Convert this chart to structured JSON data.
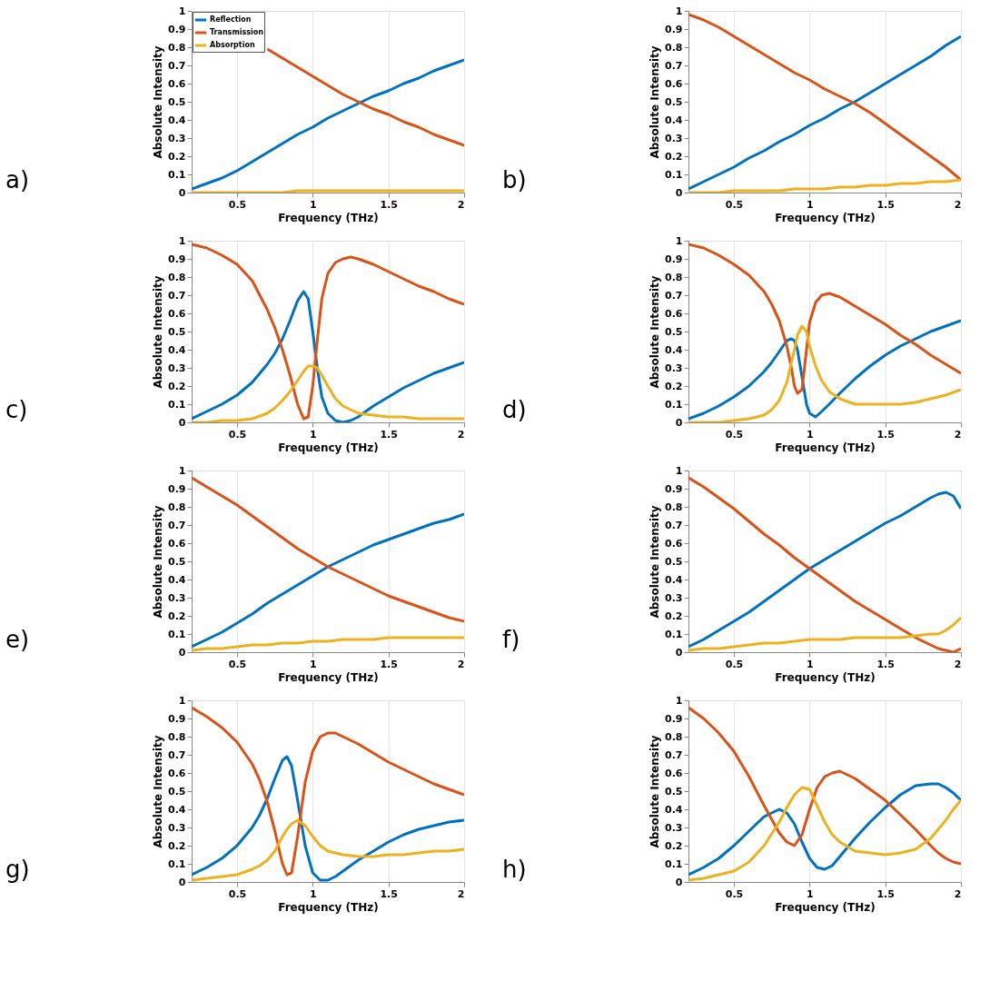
{
  "chart_data": [
    {
      "type": "line",
      "annotations": [
        "a)"
      ],
      "xlabel": "Frequency (THz)",
      "ylabel": "Absolute Intensity",
      "xlim": [
        0.2,
        2
      ],
      "ylim": [
        0,
        1
      ],
      "xticks": [
        0.5,
        1,
        1.5,
        2
      ],
      "yticks": [
        0,
        0.1,
        0.2,
        0.3,
        0.4,
        0.5,
        0.6,
        0.7,
        0.8,
        0.9,
        1
      ],
      "grid": "x",
      "legend": "top left",
      "line_style": "solid",
      "x": [
        0.2,
        0.3,
        0.4,
        0.5,
        0.6,
        0.7,
        0.8,
        0.9,
        1.0,
        1.1,
        1.2,
        1.3,
        1.4,
        1.5,
        1.6,
        1.7,
        1.8,
        1.9,
        2.0
      ],
      "series": [
        {
          "name": "Reflection",
          "color": "#0072bd",
          "values": [
            0.02,
            0.05,
            0.08,
            0.12,
            0.17,
            0.22,
            0.27,
            0.32,
            0.36,
            0.41,
            0.45,
            0.49,
            0.53,
            0.56,
            0.6,
            0.63,
            0.67,
            0.7,
            0.73
          ]
        },
        {
          "name": "Transmission",
          "color": "#d95319",
          "values": [
            null,
            null,
            null,
            null,
            null,
            0.79,
            0.74,
            0.69,
            0.64,
            0.59,
            0.54,
            0.5,
            0.46,
            0.43,
            0.39,
            0.36,
            0.32,
            0.29,
            0.26
          ]
        },
        {
          "name": "Absorption",
          "color": "#edb120",
          "values": [
            0,
            0,
            0,
            0,
            0,
            0,
            0,
            0.01,
            0.01,
            0.01,
            0.01,
            0.01,
            0.01,
            0.01,
            0.01,
            0.01,
            0.01,
            0.01,
            0.01
          ]
        }
      ]
    },
    {
      "type": "line",
      "annotations": [
        "b)"
      ],
      "xlabel": "Frequency (THz)",
      "ylabel": "Absolute Intensity",
      "xlim": [
        0.2,
        2
      ],
      "ylim": [
        0,
        1
      ],
      "xticks": [
        0.5,
        1,
        1.5,
        2
      ],
      "yticks": [
        0,
        0.1,
        0.2,
        0.3,
        0.4,
        0.5,
        0.6,
        0.7,
        0.8,
        0.9,
        1
      ],
      "grid": "x",
      "legend": "top left",
      "line_style": "solid",
      "x": [
        0.2,
        0.3,
        0.4,
        0.5,
        0.6,
        0.7,
        0.8,
        0.9,
        1.0,
        1.1,
        1.2,
        1.3,
        1.4,
        1.5,
        1.6,
        1.7,
        1.8,
        1.9,
        2.0
      ],
      "series": [
        {
          "name": "Reflection",
          "color": "#0072bd",
          "values": [
            0.02,
            0.06,
            0.1,
            0.14,
            0.19,
            0.23,
            0.28,
            0.32,
            0.37,
            0.41,
            0.46,
            0.5,
            0.55,
            0.6,
            0.65,
            0.7,
            0.75,
            0.81,
            0.86
          ]
        },
        {
          "name": "Transmission",
          "color": "#d95319",
          "values": [
            0.98,
            0.95,
            0.91,
            0.86,
            0.81,
            0.76,
            0.71,
            0.66,
            0.62,
            0.57,
            0.53,
            0.49,
            0.44,
            0.38,
            0.32,
            0.26,
            0.2,
            0.14,
            0.07
          ]
        },
        {
          "name": "Absorption",
          "color": "#edb120",
          "values": [
            0,
            0,
            0,
            0.01,
            0.01,
            0.01,
            0.01,
            0.02,
            0.02,
            0.02,
            0.03,
            0.03,
            0.04,
            0.04,
            0.05,
            0.05,
            0.06,
            0.06,
            0.07
          ]
        }
      ]
    },
    {
      "type": "line",
      "annotations": [
        "c)"
      ],
      "xlabel": "Frequency (THz)",
      "ylabel": "Absolute Intensity",
      "xlim": [
        0.2,
        2
      ],
      "ylim": [
        0,
        1
      ],
      "xticks": [
        0.5,
        1,
        1.5,
        2
      ],
      "yticks": [
        0,
        0.1,
        0.2,
        0.3,
        0.4,
        0.5,
        0.6,
        0.7,
        0.8,
        0.9,
        1
      ],
      "grid": "x",
      "legend": "top left",
      "line_style": "solid",
      "x": [
        0.2,
        0.3,
        0.4,
        0.5,
        0.6,
        0.7,
        0.75,
        0.8,
        0.85,
        0.9,
        0.94,
        0.97,
        1.0,
        1.03,
        1.06,
        1.1,
        1.15,
        1.2,
        1.25,
        1.3,
        1.4,
        1.5,
        1.6,
        1.7,
        1.8,
        1.9,
        2.0
      ],
      "series": [
        {
          "name": "Reflection",
          "color": "#0072bd",
          "values": [
            0.02,
            0.06,
            0.1,
            0.15,
            0.22,
            0.32,
            0.38,
            0.46,
            0.56,
            0.67,
            0.72,
            0.68,
            0.5,
            0.3,
            0.14,
            0.05,
            0.01,
            0,
            0.01,
            0.03,
            0.09,
            0.14,
            0.19,
            0.23,
            0.27,
            0.3,
            0.33
          ]
        },
        {
          "name": "Transmission",
          "color": "#d95319",
          "values": [
            0.98,
            0.96,
            0.92,
            0.87,
            0.78,
            0.62,
            0.52,
            0.4,
            0.26,
            0.1,
            0.02,
            0.03,
            0.2,
            0.45,
            0.68,
            0.82,
            0.88,
            0.9,
            0.91,
            0.9,
            0.87,
            0.83,
            0.79,
            0.75,
            0.72,
            0.68,
            0.65
          ]
        },
        {
          "name": "Absorption",
          "color": "#edb120",
          "values": [
            0,
            0,
            0.01,
            0.01,
            0.02,
            0.05,
            0.08,
            0.12,
            0.17,
            0.23,
            0.28,
            0.31,
            0.31,
            0.3,
            0.26,
            0.2,
            0.13,
            0.09,
            0.07,
            0.05,
            0.04,
            0.03,
            0.03,
            0.02,
            0.02,
            0.02,
            0.02
          ]
        }
      ]
    },
    {
      "type": "line",
      "annotations": [
        "d)"
      ],
      "xlabel": "Frequency (THz)",
      "ylabel": "Absolute Intensity",
      "xlim": [
        0.2,
        2
      ],
      "ylim": [
        0,
        1
      ],
      "xticks": [
        0.5,
        1,
        1.5,
        2
      ],
      "yticks": [
        0,
        0.1,
        0.2,
        0.3,
        0.4,
        0.5,
        0.6,
        0.7,
        0.8,
        0.9,
        1
      ],
      "grid": "x",
      "legend": "top left",
      "line_style": "solid",
      "x": [
        0.2,
        0.3,
        0.4,
        0.5,
        0.6,
        0.7,
        0.75,
        0.8,
        0.85,
        0.88,
        0.9,
        0.92,
        0.95,
        0.98,
        1.0,
        1.04,
        1.08,
        1.13,
        1.2,
        1.3,
        1.4,
        1.5,
        1.6,
        1.7,
        1.8,
        1.9,
        2.0
      ],
      "series": [
        {
          "name": "Reflection",
          "color": "#0072bd",
          "values": [
            0.02,
            0.05,
            0.09,
            0.14,
            0.2,
            0.28,
            0.33,
            0.39,
            0.45,
            0.46,
            0.45,
            0.4,
            0.25,
            0.1,
            0.05,
            0.03,
            0.06,
            0.1,
            0.16,
            0.24,
            0.31,
            0.37,
            0.42,
            0.46,
            0.5,
            0.53,
            0.56
          ]
        },
        {
          "name": "Transmission",
          "color": "#d95319",
          "values": [
            0.98,
            0.96,
            0.92,
            0.87,
            0.81,
            0.72,
            0.65,
            0.56,
            0.42,
            0.3,
            0.2,
            0.16,
            0.18,
            0.4,
            0.55,
            0.66,
            0.7,
            0.71,
            0.69,
            0.64,
            0.59,
            0.54,
            0.48,
            0.43,
            0.37,
            0.32,
            0.27
          ]
        },
        {
          "name": "Absorption",
          "color": "#edb120",
          "values": [
            0,
            0,
            0,
            0.01,
            0.02,
            0.04,
            0.07,
            0.12,
            0.22,
            0.33,
            0.4,
            0.48,
            0.53,
            0.5,
            0.42,
            0.31,
            0.23,
            0.17,
            0.13,
            0.1,
            0.1,
            0.1,
            0.1,
            0.11,
            0.13,
            0.15,
            0.18
          ]
        }
      ]
    },
    {
      "type": "line",
      "annotations": [
        "e)"
      ],
      "xlabel": "Frequency (THz)",
      "ylabel": "Absolute Intensity",
      "xlim": [
        0.2,
        2
      ],
      "ylim": [
        0,
        1
      ],
      "xticks": [
        0.5,
        1,
        1.5,
        2
      ],
      "yticks": [
        0,
        0.1,
        0.2,
        0.3,
        0.4,
        0.5,
        0.6,
        0.7,
        0.8,
        0.9,
        1
      ],
      "grid": "x",
      "legend": "top left",
      "line_style": "solid",
      "x": [
        0.2,
        0.3,
        0.4,
        0.5,
        0.6,
        0.7,
        0.8,
        0.9,
        1.0,
        1.1,
        1.2,
        1.3,
        1.4,
        1.5,
        1.6,
        1.7,
        1.8,
        1.9,
        2.0
      ],
      "series": [
        {
          "name": "Reflection",
          "color": "#0072bd",
          "values": [
            0.03,
            0.07,
            0.11,
            0.16,
            0.21,
            0.27,
            0.32,
            0.37,
            0.42,
            0.47,
            0.51,
            0.55,
            0.59,
            0.62,
            0.65,
            0.68,
            0.71,
            0.73,
            0.76
          ]
        },
        {
          "name": "Transmission",
          "color": "#d95319",
          "values": [
            0.96,
            0.91,
            0.86,
            0.81,
            0.75,
            0.69,
            0.63,
            0.57,
            0.52,
            0.47,
            0.43,
            0.39,
            0.35,
            0.31,
            0.28,
            0.25,
            0.22,
            0.19,
            0.17
          ]
        },
        {
          "name": "Absorption",
          "color": "#edb120",
          "values": [
            0.01,
            0.02,
            0.02,
            0.03,
            0.04,
            0.04,
            0.05,
            0.05,
            0.06,
            0.06,
            0.07,
            0.07,
            0.07,
            0.08,
            0.08,
            0.08,
            0.08,
            0.08,
            0.08
          ]
        }
      ]
    },
    {
      "type": "line",
      "annotations": [
        "f)"
      ],
      "xlabel": "Frequency (THz)",
      "ylabel": "Absolute Intensity",
      "xlim": [
        0.2,
        2
      ],
      "ylim": [
        0,
        1
      ],
      "xticks": [
        0.5,
        1,
        1.5,
        2
      ],
      "yticks": [
        0,
        0.1,
        0.2,
        0.3,
        0.4,
        0.5,
        0.6,
        0.7,
        0.8,
        0.9,
        1
      ],
      "grid": "x",
      "legend": "top left",
      "line_style": "solid",
      "x": [
        0.2,
        0.3,
        0.4,
        0.5,
        0.6,
        0.7,
        0.8,
        0.9,
        1.0,
        1.1,
        1.2,
        1.3,
        1.4,
        1.5,
        1.6,
        1.7,
        1.8,
        1.85,
        1.9,
        1.95,
        2.0
      ],
      "series": [
        {
          "name": "Reflection",
          "color": "#0072bd",
          "values": [
            0.03,
            0.07,
            0.12,
            0.17,
            0.22,
            0.28,
            0.34,
            0.4,
            0.46,
            0.51,
            0.56,
            0.61,
            0.66,
            0.71,
            0.75,
            0.8,
            0.85,
            0.87,
            0.88,
            0.86,
            0.79
          ]
        },
        {
          "name": "Transmission",
          "color": "#d95319",
          "values": [
            0.96,
            0.91,
            0.85,
            0.79,
            0.72,
            0.65,
            0.59,
            0.52,
            0.46,
            0.4,
            0.34,
            0.28,
            0.23,
            0.18,
            0.13,
            0.08,
            0.04,
            0.02,
            0.01,
            0,
            0.02
          ]
        },
        {
          "name": "Absorption",
          "color": "#edb120",
          "values": [
            0.01,
            0.02,
            0.02,
            0.03,
            0.04,
            0.05,
            0.05,
            0.06,
            0.07,
            0.07,
            0.07,
            0.08,
            0.08,
            0.08,
            0.08,
            0.09,
            0.1,
            0.1,
            0.12,
            0.15,
            0.19
          ]
        }
      ]
    },
    {
      "type": "line",
      "annotations": [
        "g)"
      ],
      "xlabel": "Frequency (THz)",
      "ylabel": "Absolute Intensity",
      "xlim": [
        0.2,
        2
      ],
      "ylim": [
        0,
        1
      ],
      "xticks": [
        0.5,
        1,
        1.5,
        2
      ],
      "yticks": [
        0,
        0.1,
        0.2,
        0.3,
        0.4,
        0.5,
        0.6,
        0.7,
        0.8,
        0.9,
        1
      ],
      "grid": "x",
      "legend": "top left",
      "line_style": "solid",
      "x": [
        0.2,
        0.3,
        0.4,
        0.5,
        0.6,
        0.65,
        0.7,
        0.75,
        0.8,
        0.83,
        0.86,
        0.9,
        0.95,
        1.0,
        1.05,
        1.1,
        1.15,
        1.2,
        1.3,
        1.4,
        1.5,
        1.6,
        1.7,
        1.8,
        1.9,
        2.0
      ],
      "series": [
        {
          "name": "Reflection",
          "color": "#0072bd",
          "values": [
            0.04,
            0.08,
            0.13,
            0.2,
            0.3,
            0.37,
            0.46,
            0.57,
            0.67,
            0.69,
            0.64,
            0.45,
            0.2,
            0.05,
            0.01,
            0.01,
            0.03,
            0.06,
            0.12,
            0.17,
            0.22,
            0.26,
            0.29,
            0.31,
            0.33,
            0.34
          ]
        },
        {
          "name": "Transmission",
          "color": "#d95319",
          "values": [
            0.96,
            0.91,
            0.85,
            0.77,
            0.65,
            0.56,
            0.44,
            0.28,
            0.1,
            0.04,
            0.05,
            0.25,
            0.55,
            0.72,
            0.8,
            0.82,
            0.82,
            0.8,
            0.76,
            0.71,
            0.66,
            0.62,
            0.58,
            0.54,
            0.51,
            0.48
          ]
        },
        {
          "name": "Absorption",
          "color": "#edb120",
          "values": [
            0.01,
            0.02,
            0.03,
            0.04,
            0.07,
            0.09,
            0.12,
            0.17,
            0.25,
            0.29,
            0.32,
            0.34,
            0.31,
            0.25,
            0.2,
            0.17,
            0.16,
            0.15,
            0.14,
            0.14,
            0.15,
            0.15,
            0.16,
            0.17,
            0.17,
            0.18
          ]
        }
      ]
    },
    {
      "type": "line",
      "annotations": [
        "h)"
      ],
      "xlabel": "Frequency (THz)",
      "ylabel": "Absolute Intensity",
      "xlim": [
        0.2,
        2
      ],
      "ylim": [
        0,
        1
      ],
      "xticks": [
        0.5,
        1,
        1.5,
        2
      ],
      "yticks": [
        0,
        0.1,
        0.2,
        0.3,
        0.4,
        0.5,
        0.6,
        0.7,
        0.8,
        0.9,
        1
      ],
      "grid": "x",
      "legend": "top left",
      "line_style": "solid",
      "x": [
        0.2,
        0.3,
        0.4,
        0.5,
        0.6,
        0.7,
        0.8,
        0.85,
        0.9,
        0.95,
        1.0,
        1.05,
        1.1,
        1.15,
        1.2,
        1.3,
        1.4,
        1.5,
        1.6,
        1.7,
        1.8,
        1.85,
        1.9,
        1.95,
        2.0
      ],
      "series": [
        {
          "name": "Reflection",
          "color": "#0072bd",
          "values": [
            0.04,
            0.08,
            0.13,
            0.2,
            0.28,
            0.36,
            0.4,
            0.38,
            0.32,
            0.22,
            0.13,
            0.08,
            0.07,
            0.09,
            0.14,
            0.24,
            0.33,
            0.41,
            0.48,
            0.53,
            0.54,
            0.54,
            0.52,
            0.49,
            0.45
          ]
        },
        {
          "name": "Transmission",
          "color": "#d95319",
          "values": [
            0.96,
            0.9,
            0.82,
            0.72,
            0.58,
            0.42,
            0.27,
            0.22,
            0.2,
            0.26,
            0.4,
            0.52,
            0.58,
            0.6,
            0.61,
            0.57,
            0.51,
            0.45,
            0.37,
            0.29,
            0.2,
            0.16,
            0.13,
            0.11,
            0.1
          ]
        },
        {
          "name": "Absorption",
          "color": "#edb120",
          "values": [
            0.01,
            0.02,
            0.04,
            0.06,
            0.11,
            0.2,
            0.33,
            0.41,
            0.48,
            0.52,
            0.51,
            0.42,
            0.33,
            0.26,
            0.22,
            0.17,
            0.16,
            0.15,
            0.16,
            0.18,
            0.24,
            0.29,
            0.34,
            0.4,
            0.45
          ]
        }
      ]
    }
  ]
}
